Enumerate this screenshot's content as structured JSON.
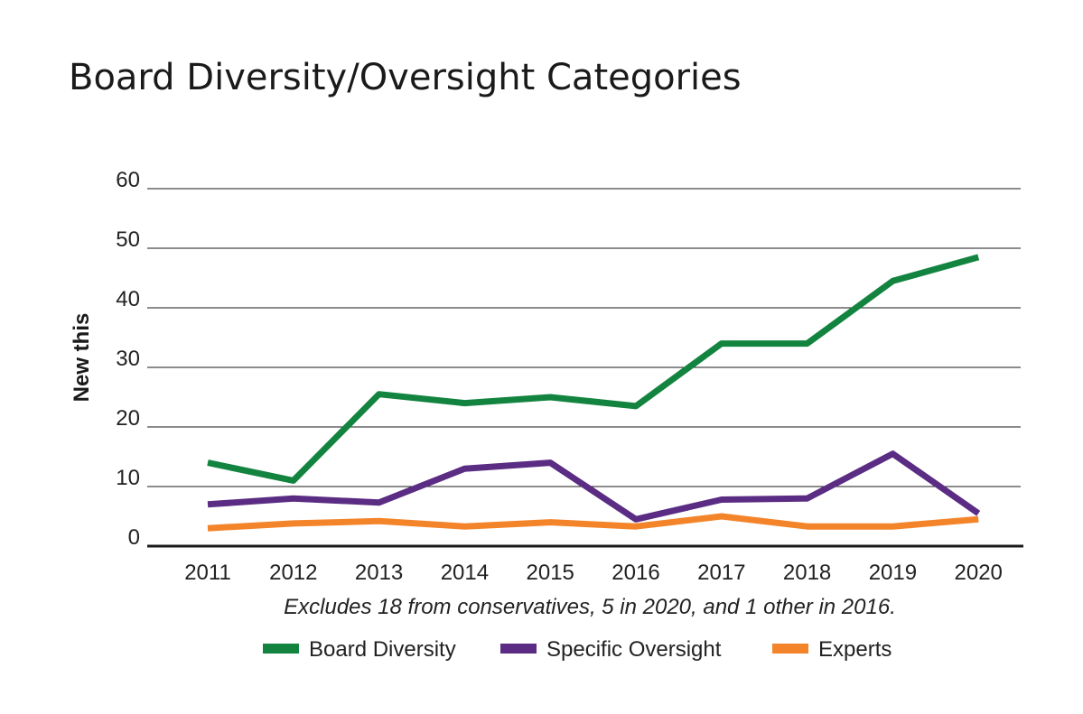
{
  "chart_data": {
    "type": "line",
    "title": "Board Diversity/Oversight Categories",
    "ylabel": "New this",
    "xlabel": "",
    "note": "Excludes 18 from conservatives, 5 in 2020, and 1 other in 2016.",
    "categories": [
      "2011",
      "2012",
      "2013",
      "2014",
      "2015",
      "2016",
      "2017",
      "2018",
      "2019",
      "2020"
    ],
    "ylim": [
      0,
      60
    ],
    "yticks": [
      0,
      10,
      20,
      30,
      40,
      50,
      60
    ],
    "grid": true,
    "legend_position": "bottom",
    "series": [
      {
        "name": "Board Diversity",
        "color": "#13843f",
        "values": [
          14,
          11,
          25.5,
          24,
          25,
          23.5,
          34,
          34,
          44.5,
          48.5
        ]
      },
      {
        "name": "Specific Oversight",
        "color": "#5b2c83",
        "values": [
          7,
          8,
          7.3,
          13,
          14,
          4.5,
          7.8,
          8,
          15.5,
          5.5
        ]
      },
      {
        "name": "Experts",
        "color": "#f4842a",
        "values": [
          3,
          3.8,
          4.2,
          3.3,
          4,
          3.3,
          5,
          3.3,
          3.3,
          4.5
        ]
      }
    ]
  }
}
